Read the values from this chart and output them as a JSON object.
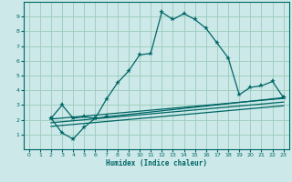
{
  "xlabel": "Humidex (Indice chaleur)",
  "bg_color": "#cce8e8",
  "grid_color": "#99ccbb",
  "line_color": "#006666",
  "xlim": [
    -0.5,
    23.5
  ],
  "ylim": [
    0,
    10
  ],
  "xticks": [
    0,
    1,
    2,
    3,
    4,
    5,
    6,
    7,
    8,
    9,
    10,
    11,
    12,
    13,
    14,
    15,
    16,
    17,
    18,
    19,
    20,
    21,
    22,
    23
  ],
  "yticks": [
    1,
    2,
    3,
    4,
    5,
    6,
    7,
    8,
    9
  ],
  "lines": [
    {
      "x": [
        2,
        3,
        4,
        5,
        6,
        7,
        8,
        9,
        10,
        11,
        12,
        13,
        14,
        15,
        16,
        17,
        18,
        19,
        20,
        21,
        22,
        23
      ],
      "y": [
        2.1,
        3.0,
        2.1,
        2.2,
        2.1,
        3.4,
        4.5,
        5.3,
        6.4,
        6.5,
        9.3,
        8.8,
        9.2,
        8.8,
        8.2,
        7.2,
        6.2,
        3.7,
        4.2,
        4.3,
        4.6,
        3.5
      ],
      "marker": true
    },
    {
      "x": [
        2,
        3,
        4,
        5,
        6,
        7,
        23
      ],
      "y": [
        2.1,
        1.1,
        0.7,
        1.5,
        2.1,
        2.2,
        3.5
      ],
      "marker": true
    },
    {
      "x": [
        2,
        23
      ],
      "y": [
        2.05,
        3.45
      ],
      "marker": false
    },
    {
      "x": [
        2,
        23
      ],
      "y": [
        1.8,
        3.2
      ],
      "marker": false
    },
    {
      "x": [
        2,
        23
      ],
      "y": [
        1.55,
        2.95
      ],
      "marker": false
    }
  ]
}
